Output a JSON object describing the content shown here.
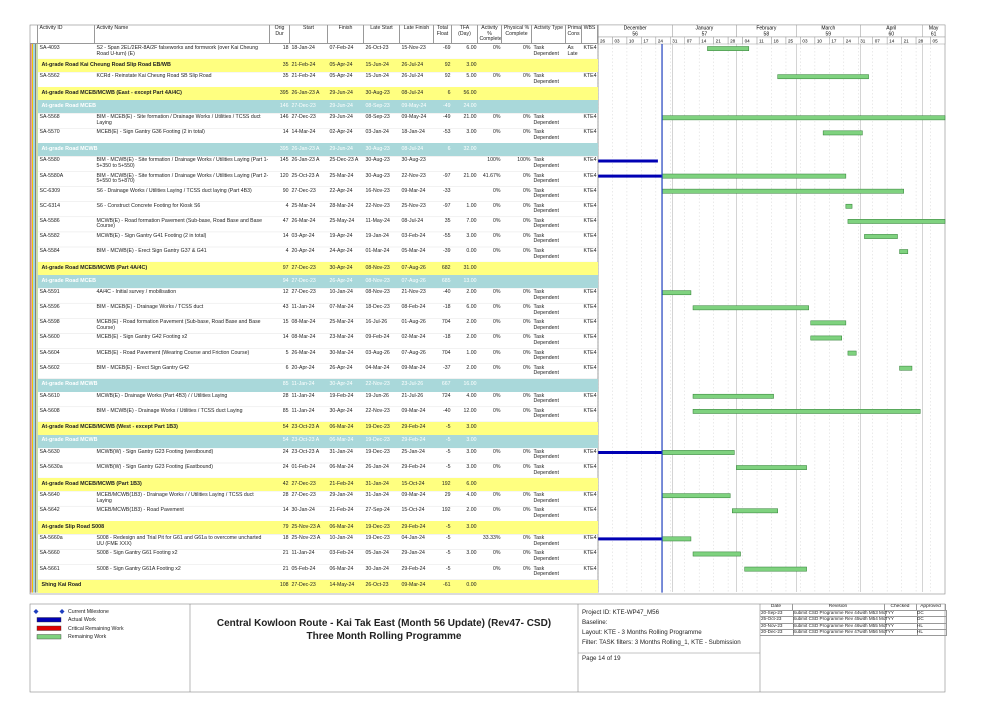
{
  "columns": [
    "Activity ID",
    "Activity Name",
    "Orig Dur",
    "Start",
    "Finish",
    "Late Start",
    "Late Finish",
    "Total Float",
    "TFA (Day)",
    "Activity % Complete",
    "Physical % Complete",
    "Activity Type",
    "Prima Cons",
    "WBS"
  ],
  "timescale": {
    "months": [
      {
        "name": "December",
        "num": 56
      },
      {
        "name": "January",
        "num": 57
      },
      {
        "name": "February",
        "num": 58
      },
      {
        "name": "March",
        "num": 59
      },
      {
        "name": "April",
        "num": 60
      },
      {
        "name": "May",
        "num": 61
      }
    ],
    "weeks": [
      "26",
      "03",
      "10",
      "17",
      "24",
      "31",
      "07",
      "14",
      "21",
      "28",
      "04",
      "11",
      "18",
      "25",
      "03",
      "10",
      "17",
      "24",
      "31",
      "07",
      "14",
      "21",
      "28",
      "05"
    ]
  },
  "rows": [
    {
      "id": "SA-4093",
      "name": "S2 - Span 2EL/2ER-8A/2F falseworks and formwork (over Kai Cheung Road U-turn) (E)",
      "dur": 18,
      "start": "18-Jan-24",
      "finish": "07-Feb-24",
      "lstart": "26-Oct-23",
      "lfinish": "15-Nov-23",
      "tf": -69,
      "tfa": "6.00",
      "pct": "0%",
      "phys": "0%",
      "type": "Task Dependent",
      "cons": "As Late",
      "wbs": "KTE4"
    },
    {
      "name": "At-grade Road Kai Cheung Road Slip Road EB/WB",
      "color": "#ffff80",
      "dur": 35,
      "start": "21-Feb-24",
      "finish": "05-Apr-24",
      "lstart": "15-Jun-24",
      "lfinish": "26-Jul-24",
      "tf": 92,
      "tfa": "3.00"
    },
    {
      "id": "SA-5562",
      "name": "KCRd - Reinstate Kai Cheung Road SB Slip Road",
      "dur": 35,
      "start": "21-Feb-24",
      "finish": "05-Apr-24",
      "lstart": "15-Jun-24",
      "lfinish": "26-Jul-24",
      "tf": 92,
      "tfa": "5.00",
      "pct": "0%",
      "phys": "0%",
      "type": "Task Dependent",
      "wbs": "KTE4"
    },
    {
      "name": "At-grade Road MCEB/MCWB (East - except Part 4A/4C)",
      "color": "#ffff80",
      "dur": 395,
      "start": "26-Jan-23 A",
      "finish": "29-Jun-24",
      "lstart": "30-Aug-23",
      "lfinish": "08-Jul-24",
      "tf": 6,
      "tfa": "56.00"
    },
    {
      "name": "At-grade Road MCEB",
      "color": "#a9d8da",
      "dur": 146,
      "start": "27-Dec-23",
      "finish": "29-Jun-24",
      "lstart": "08-Sep-23",
      "lfinish": "09-May-24",
      "tf": -49,
      "tfa": "24.00"
    },
    {
      "id": "SA-5568",
      "name": "BIM - MCEB(E) - Site formation / Drainage Works / Utilities / TCSS duct Laying",
      "dur": 146,
      "start": "27-Dec-23",
      "finish": "29-Jun-24",
      "lstart": "08-Sep-23",
      "lfinish": "09-May-24",
      "tf": -49,
      "tfa": "21.00",
      "pct": "0%",
      "phys": "0%",
      "type": "Task Dependent",
      "wbs": "KTE4"
    },
    {
      "id": "SA-5570",
      "name": "MCEB(E) - Sign Gantry G36 Footing (2 in total)",
      "dur": 14,
      "start": "14-Mar-24",
      "finish": "02-Apr-24",
      "lstart": "03-Jan-24",
      "lfinish": "18-Jan-24",
      "tf": -53,
      "tfa": "3.00",
      "pct": "0%",
      "phys": "0%",
      "type": "Task Dependent",
      "wbs": "KTE4"
    },
    {
      "name": "At-grade Road MCWB",
      "color": "#a9d8da",
      "dur": 395,
      "start": "26-Jan-23 A",
      "finish": "29-Jun-24",
      "lstart": "30-Aug-23",
      "lfinish": "08-Jul-24",
      "tf": 6,
      "tfa": "32.00"
    },
    {
      "id": "SA-5580",
      "name": "BIM - MCWB(E) - Site formation / Drainage Works / Utilities Laying (Part 1- 5+350 to 5+550)",
      "dur": 145,
      "start": "26-Jan-23 A",
      "finish": "25-Dec-23 A",
      "lstart": "30-Aug-23",
      "lfinish": "30-Aug-23",
      "pct": "100%",
      "phys": "100%",
      "type": "Task Dependent",
      "wbs": "KTE4"
    },
    {
      "id": "SA-5580A",
      "name": "BIM - MCWB(E) - Site formation / Drainage Works / Utilities Laying (Part 2- 5+550 to 5+870)",
      "dur": 120,
      "start": "25-Oct-23 A",
      "finish": "25-Mar-24",
      "lstart": "30-Aug-23",
      "lfinish": "22-Nov-23",
      "tf": -97,
      "tfa": "21.00",
      "pct": "41.67%",
      "phys": "0%",
      "type": "Task Dependent",
      "wbs": "KTE4"
    },
    {
      "id": "SC-6309",
      "name": "S6 - Drainage Works / Utilities Laying / TCSS duct laying (Part 4B3)",
      "dur": 90,
      "start": "27-Dec-23",
      "finish": "22-Apr-24",
      "lstart": "16-Nov-23",
      "lfinish": "09-Mar-24",
      "tf": -33,
      "pct": "0%",
      "phys": "0%",
      "type": "Task Dependent",
      "wbs": "KTE4"
    },
    {
      "id": "SC-6314",
      "name": "S6 - Construct Concrete Footing for Kiosk S6",
      "dur": 4,
      "start": "25-Mar-24",
      "finish": "28-Mar-24",
      "lstart": "22-Nov-23",
      "lfinish": "25-Nov-23",
      "tf": -97,
      "tfa": "1.00",
      "pct": "0%",
      "phys": "0%",
      "type": "Task Dependent",
      "wbs": "KTE4"
    },
    {
      "id": "SA-5586",
      "name": "MCWB(E) - Road formation Pavement (Sub-base, Road Base and Base Course)",
      "dur": 47,
      "start": "26-Mar-24",
      "finish": "25-May-24",
      "lstart": "11-May-24",
      "lfinish": "08-Jul-24",
      "tf": 35,
      "tfa": "7.00",
      "pct": "0%",
      "phys": "0%",
      "type": "Task Dependent",
      "wbs": "KTE4"
    },
    {
      "id": "SA-5582",
      "name": "MCWB(E) - Sign Gantry G41 Footing (2 in total)",
      "dur": 14,
      "start": "03-Apr-24",
      "finish": "19-Apr-24",
      "lstart": "19-Jan-24",
      "lfinish": "03-Feb-24",
      "tf": -55,
      "tfa": "3.00",
      "pct": "0%",
      "phys": "0%",
      "type": "Task Dependent",
      "wbs": "KTE4"
    },
    {
      "id": "SA-5584",
      "name": "BIM - MCWB(E) - Erect Sign Gantry G37 & G41",
      "dur": 4,
      "start": "20-Apr-24",
      "finish": "24-Apr-24",
      "lstart": "01-Mar-24",
      "lfinish": "05-Mar-24",
      "tf": -39,
      "tfa": "0.00",
      "pct": "0%",
      "phys": "0%",
      "type": "Task Dependent",
      "wbs": "KTE4"
    },
    {
      "name": "At-grade Road MCEB/MCWB (Part 4A/4C)",
      "color": "#ffff80",
      "dur": 97,
      "start": "27-Dec-23",
      "finish": "30-Apr-24",
      "lstart": "08-Nov-23",
      "lfinish": "07-Aug-26",
      "tf": 682,
      "tfa": "31.00"
    },
    {
      "name": "At-grade Road MCEB",
      "color": "#a9d8da",
      "dur": 94,
      "start": "27-Dec-23",
      "finish": "26-Apr-24",
      "lstart": "08-Nov-23",
      "lfinish": "07-Aug-26",
      "tf": 685,
      "tfa": "13.00"
    },
    {
      "id": "SA-5591",
      "name": "4A/4C - Initial survey / mobilisation",
      "dur": 12,
      "start": "27-Dec-23",
      "finish": "10-Jan-24",
      "lstart": "08-Nov-23",
      "lfinish": "21-Nov-23",
      "tf": -40,
      "tfa": "2.00",
      "pct": "0%",
      "phys": "0%",
      "type": "Task Dependent",
      "wbs": "KTE4"
    },
    {
      "id": "SA-5596",
      "name": "BIM - MCEB(E) - Drainage Works / TCSS duct",
      "dur": 43,
      "start": "11-Jan-24",
      "finish": "07-Mar-24",
      "lstart": "18-Dec-23",
      "lfinish": "08-Feb-24",
      "tf": -18,
      "tfa": "6.00",
      "pct": "0%",
      "phys": "0%",
      "type": "Task Dependent",
      "wbs": "KTE4"
    },
    {
      "id": "SA-5598",
      "name": "MCEB(E) - Road formation Pavement (Sub-base, Road Base and Base Course)",
      "dur": 15,
      "start": "08-Mar-24",
      "finish": "25-Mar-24",
      "lstart": "16-Jul-26",
      "lfinish": "01-Aug-26",
      "tf": 704,
      "tfa": "2.00",
      "pct": "0%",
      "phys": "0%",
      "type": "Task Dependent",
      "wbs": "KTE4"
    },
    {
      "id": "SA-5600",
      "name": "MCEB(E) - Sign Gantry G42 Footing x2",
      "dur": 14,
      "start": "08-Mar-24",
      "finish": "23-Mar-24",
      "lstart": "09-Feb-24",
      "lfinish": "02-Mar-24",
      "tf": -18,
      "tfa": "2.00",
      "pct": "0%",
      "phys": "0%",
      "type": "Task Dependent",
      "wbs": "KTE4"
    },
    {
      "id": "SA-5604",
      "name": "MCEB(E) - Road Pavement (Wearing Course and Friction Course)",
      "dur": 5,
      "start": "26-Mar-24",
      "finish": "30-Mar-24",
      "lstart": "03-Aug-26",
      "lfinish": "07-Aug-26",
      "tf": 704,
      "tfa": "1.00",
      "pct": "0%",
      "phys": "0%",
      "type": "Task Dependent",
      "wbs": "KTE4"
    },
    {
      "id": "SA-5602",
      "name": "BIM - MCEB(E) - Erect Sign Gantry G42",
      "dur": 6,
      "start": "20-Apr-24",
      "finish": "26-Apr-24",
      "lstart": "04-Mar-24",
      "lfinish": "09-Mar-24",
      "tf": -37,
      "tfa": "2.00",
      "pct": "0%",
      "phys": "0%",
      "type": "Task Dependent",
      "wbs": "KTE4"
    },
    {
      "name": "At-grade Road MCWB",
      "color": "#a9d8da",
      "dur": 85,
      "start": "11-Jan-24",
      "finish": "30-Apr-24",
      "lstart": "22-Nov-23",
      "lfinish": "23-Jul-26",
      "tf": 667,
      "tfa": "16.00"
    },
    {
      "id": "SA-5610",
      "name": "MCWB(E) - Drainage Works (Part 4B3) / / Utilities Laying",
      "dur": 28,
      "start": "11-Jan-24",
      "finish": "19-Feb-24",
      "lstart": "19-Jun-26",
      "lfinish": "21-Jul-26",
      "tf": 724,
      "tfa": "4.00",
      "pct": "0%",
      "phys": "0%",
      "type": "Task Dependent",
      "wbs": "KTE4"
    },
    {
      "id": "SA-5608",
      "name": "BIM - MCWB(E) - Drainage Works / Utilities / TCSS duct Laying",
      "dur": 85,
      "start": "11-Jan-24",
      "finish": "30-Apr-24",
      "lstart": "22-Nov-23",
      "lfinish": "09-Mar-24",
      "tf": -40,
      "tfa": "12.00",
      "pct": "0%",
      "phys": "0%",
      "type": "Task Dependent",
      "wbs": "KTE4"
    },
    {
      "name": "At-grade Road MCEB/MCWB (West - except Part 1B3)",
      "color": "#ffff80",
      "dur": 54,
      "start": "23-Oct-23 A",
      "finish": "06-Mar-24",
      "lstart": "19-Dec-23",
      "lfinish": "29-Feb-24",
      "tf": -5,
      "tfa": "3.00"
    },
    {
      "name": "At-grade Road MCWB",
      "color": "#a9d8da",
      "dur": 54,
      "start": "23-Oct-23 A",
      "finish": "06-Mar-24",
      "lstart": "19-Dec-23",
      "lfinish": "29-Feb-24",
      "tf": -5,
      "tfa": "3.00"
    },
    {
      "id": "SA-5630",
      "name": "MCWB(W) - Sign Gantry G23 Footing (westbound)",
      "dur": 24,
      "start": "23-Oct-23 A",
      "finish": "31-Jan-24",
      "lstart": "19-Dec-23",
      "lfinish": "25-Jan-24",
      "tf": -5,
      "tfa": "3.00",
      "pct": "0%",
      "phys": "0%",
      "type": "Task Dependent",
      "wbs": "KTE4"
    },
    {
      "id": "SA-5630a",
      "name": "MCWB(W) - Sign Gantry G23 Footing (Eastbound)",
      "dur": 24,
      "start": "01-Feb-24",
      "finish": "06-Mar-24",
      "lstart": "26-Jan-24",
      "lfinish": "29-Feb-24",
      "tf": -5,
      "tfa": "3.00",
      "pct": "0%",
      "phys": "0%",
      "type": "Task Dependent",
      "wbs": "KTE4"
    },
    {
      "name": "At-grade Road MCEB/MCWB (Part 1B3)",
      "color": "#ffff80",
      "dur": 42,
      "start": "27-Dec-23",
      "finish": "21-Feb-24",
      "lstart": "31-Jan-24",
      "lfinish": "15-Oct-24",
      "tf": 192,
      "tfa": "6.00"
    },
    {
      "id": "SA-5640",
      "name": "MCEB/MCWB(1B3) - Drainage Works / / Utilities Laying / TCSS duct Laying",
      "dur": 28,
      "start": "27-Dec-23",
      "finish": "29-Jan-24",
      "lstart": "31-Jan-24",
      "lfinish": "09-Mar-24",
      "tf": 29,
      "tfa": "4.00",
      "pct": "0%",
      "phys": "0%",
      "type": "Task Dependent",
      "wbs": "KTE4"
    },
    {
      "id": "SA-5642",
      "name": "MCEB/MCWB(1B3) - Road Pavement",
      "dur": 14,
      "start": "30-Jan-24",
      "finish": "21-Feb-24",
      "lstart": "27-Sep-24",
      "lfinish": "15-Oct-24",
      "tf": 192,
      "tfa": "2.00",
      "pct": "0%",
      "phys": "0%",
      "type": "Task Dependent",
      "wbs": "KTE4"
    },
    {
      "name": "At-grade Slip Road S008",
      "color": "#ffff80",
      "dur": 79,
      "start": "25-Nov-23 A",
      "finish": "06-Mar-24",
      "lstart": "19-Dec-23",
      "lfinish": "29-Feb-24",
      "tf": -5,
      "tfa": "3.00"
    },
    {
      "id": "SA-5660a",
      "name": "S008 - Redesign and Trial Pit for G61 and G61a to overcome uncharted UU (FME XXX)",
      "dur": 18,
      "start": "25-Nov-23 A",
      "finish": "10-Jan-24",
      "lstart": "19-Dec-23",
      "lfinish": "04-Jan-24",
      "tf": -5,
      "pct": "33.33%",
      "phys": "0%",
      "type": "Task Dependent",
      "wbs": "KTE4"
    },
    {
      "id": "SA-5660",
      "name": "S008 - Sign Gantry G61 Footing x2",
      "dur": 21,
      "start": "11-Jan-24",
      "finish": "03-Feb-24",
      "lstart": "05-Jan-24",
      "lfinish": "29-Jan-24",
      "tf": -5,
      "tfa": "3.00",
      "pct": "0%",
      "phys": "0%",
      "type": "Task Dependent",
      "wbs": "KTE4"
    },
    {
      "id": "SA-5661",
      "name": "S008 - Sign Gantry G61A Footing x2",
      "dur": 21,
      "start": "05-Feb-24",
      "finish": "06-Mar-24",
      "lstart": "30-Jan-24",
      "lfinish": "29-Feb-24",
      "tf": -5,
      "pct": "0%",
      "phys": "0%",
      "type": "Task Dependent",
      "wbs": "KTE4"
    },
    {
      "name": "Shing Kai Road",
      "color": "#ffff80",
      "dur": 108,
      "start": "27-Dec-23",
      "finish": "14-May-24",
      "lstart": "26-Oct-23",
      "lfinish": "09-Mar-24",
      "tf": -61,
      "tfa": "0.00"
    }
  ],
  "footer": {
    "legend": [
      "Current Milestone",
      "Actual Work",
      "Critical Remaining Work",
      "Remaining Work"
    ],
    "title": "Central Kowloon Route - Kai Tak East (Month 56 Update) (Rev47- CSD)",
    "subtitle": "Three Month Rolling Programme",
    "info": [
      "Project ID: KTE-WP47_M56",
      "Baseline:",
      "Layout: KTE - 3 Months Rolling Programme",
      "Filter: TASK filters: 3 Months Rolling_1, KTE - Submission"
    ],
    "page": "Page 14 of 19",
    "revisions": {
      "header": [
        "Date",
        "Revision",
        "Checked",
        "Approved"
      ],
      "rows": [
        [
          "20-Sep-23",
          "Submit CSD Programme Rev 44with M53 Mon...",
          "TYY",
          "DC"
        ],
        [
          "25-Oct-23",
          "Submit CSD Programme Rev 45with M54 Mon...",
          "TYY",
          "DC"
        ],
        [
          "20-Nov-23",
          "Submit CSD Programme Rev 46with M55 Mon...",
          "TYY",
          "HL"
        ],
        [
          "20-Dec-23",
          "Submit CSD Programme Rev 47with M56 Mon...",
          "TYY",
          "HL"
        ]
      ]
    }
  }
}
